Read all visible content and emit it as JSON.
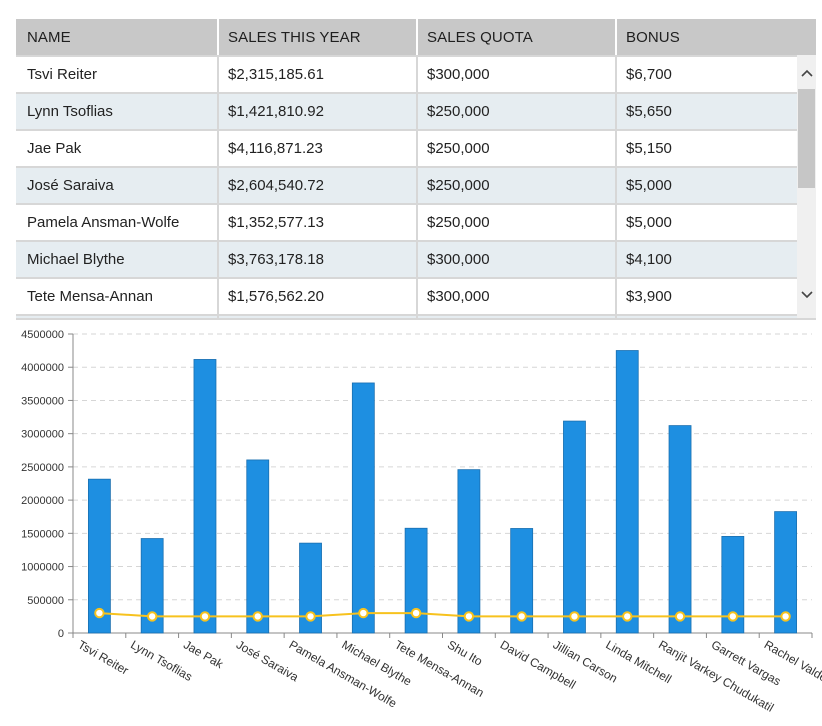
{
  "grid": {
    "columns": [
      "NAME",
      "SALES THIS YEAR",
      "SALES QUOTA",
      "BONUS"
    ],
    "rows": [
      [
        "Tsvi Reiter",
        "$2,315,185.61",
        "$300,000",
        "$6,700"
      ],
      [
        "Lynn Tsoflias",
        "$1,421,810.92",
        "$250,000",
        "$5,650"
      ],
      [
        "Jae Pak",
        "$4,116,871.23",
        "$250,000",
        "$5,150"
      ],
      [
        "José Saraiva",
        "$2,604,540.72",
        "$250,000",
        "$5,000"
      ],
      [
        "Pamela Ansman-Wolfe",
        "$1,352,577.13",
        "$250,000",
        "$5,000"
      ],
      [
        "Michael Blythe",
        "$3,763,178.18",
        "$300,000",
        "$4,100"
      ],
      [
        "Tete Mensa-Annan",
        "$1,576,562.20",
        "$300,000",
        "$3,900"
      ]
    ],
    "scroll_up_icon": "chevron-up-icon",
    "scroll_down_icon": "chevron-down-icon",
    "scroll_position": 0.0
  },
  "chart_data": {
    "type": "bar",
    "title": "",
    "xlabel": "",
    "ylabel": "",
    "ylim": [
      0,
      4500000
    ],
    "yticks": [
      0,
      500000,
      1000000,
      1500000,
      2000000,
      2500000,
      3000000,
      3500000,
      4000000,
      4500000
    ],
    "grid": true,
    "categories": [
      "Tsvi Reiter",
      "Lynn Tsoflias",
      "Jae Pak",
      "José Saraiva",
      "Pamela Ansman-Wolfe",
      "Michael Blythe",
      "Tete Mensa-Annan",
      "Shu Ito",
      "David Campbell",
      "Jillian Carson",
      "Linda Mitchell",
      "Ranjit Varkey Chudukatil",
      "Garrett Vargas",
      "Rachel Valdez"
    ],
    "series": [
      {
        "type": "bar",
        "color": "#1e8fe1",
        "values": [
          2315185.61,
          1421810.92,
          4116871.23,
          2604540.72,
          1352577.13,
          3763178.18,
          1576562.2,
          2458535.61,
          1573012.93,
          3189418.36,
          4251368.54,
          3121616.32,
          1453719.46,
          1827066.71
        ]
      },
      {
        "type": "line",
        "color": "#f7c21e",
        "values": [
          300000,
          250000,
          250000,
          250000,
          250000,
          300000,
          300000,
          250000,
          250000,
          250000,
          250000,
          250000,
          250000,
          250000
        ]
      }
    ]
  }
}
